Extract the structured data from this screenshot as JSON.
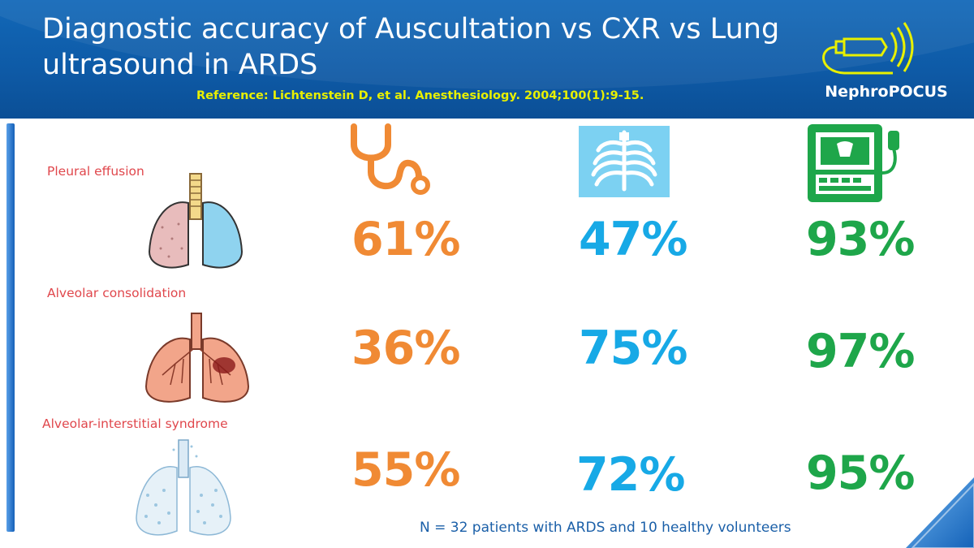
{
  "header": {
    "title": "Diagnostic accuracy of Auscultation vs CXR vs Lung ultrasound in ARDS",
    "reference": "Reference: Lichtenstein D, et al. Anesthesiology. 2004;100(1):9-15.",
    "logo_text": "NephroPOCUS"
  },
  "icons": {
    "column_1": "stethoscope-icon",
    "column_2": "chest-xray-icon",
    "column_3": "ultrasound-machine-icon"
  },
  "colors": {
    "auscultation": "#f08a34",
    "cxr": "#17a9e6",
    "ultrasound": "#1ea64a",
    "row_label": "#e0474c",
    "header": "#0e5aa6"
  },
  "rows": [
    {
      "label": "Pleural effusion",
      "auscultation": "61%",
      "cxr": "47%",
      "ultrasound": "93%"
    },
    {
      "label": "Alveolar consolidation",
      "auscultation": "36%",
      "cxr": "75%",
      "ultrasound": "97%"
    },
    {
      "label": "Alveolar-interstitial syndrome",
      "auscultation": "55%",
      "cxr": "72%",
      "ultrasound": "95%"
    }
  ],
  "footnote": "N = 32 patients with ARDS and 10 healthy volunteers"
}
